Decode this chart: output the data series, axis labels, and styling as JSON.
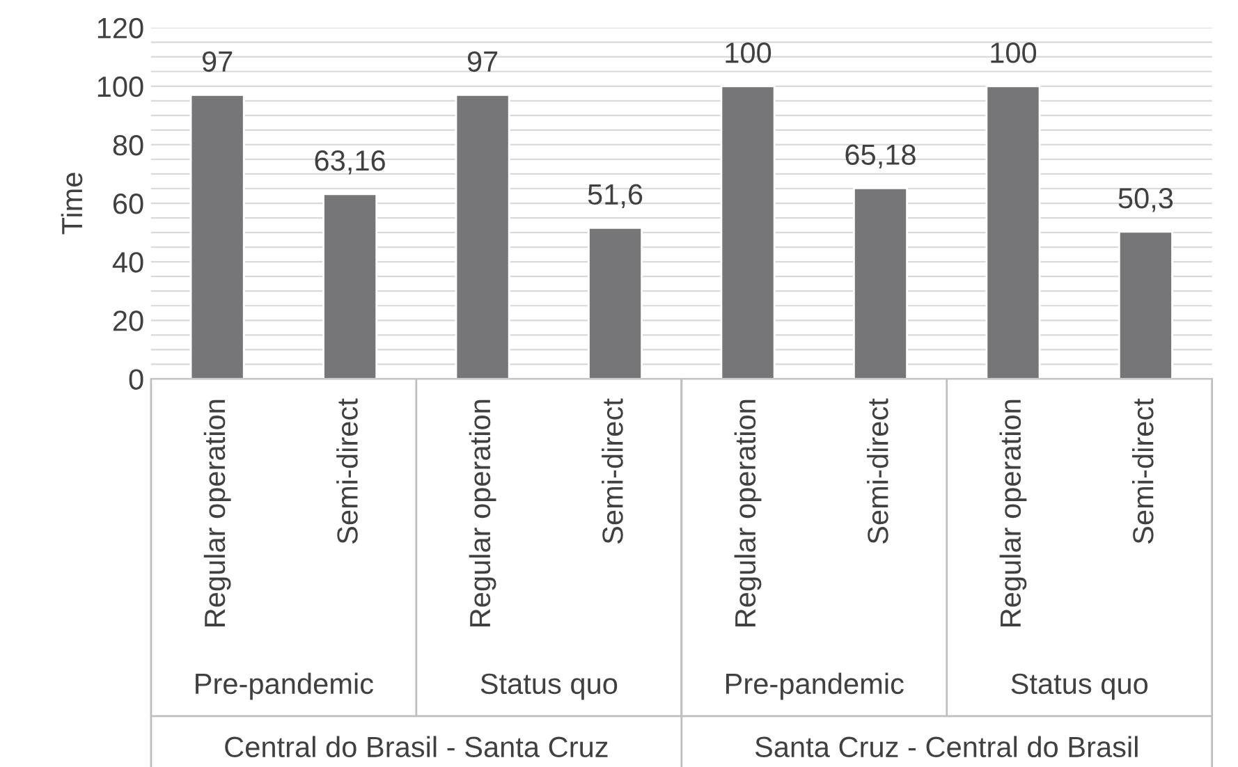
{
  "chart_data": {
    "type": "bar",
    "ylabel": "Time",
    "categories": [
      "Regular operation",
      "Semi-direct",
      "Regular operation",
      "Semi-direct",
      "Regular operation",
      "Semi-direct",
      "Regular operation",
      "Semi-direct"
    ],
    "values": [
      97,
      63.16,
      97,
      51.6,
      100,
      65.18,
      100,
      50.3
    ],
    "value_labels": [
      "97",
      "63,16",
      "97",
      "51,6",
      "100",
      "65,18",
      "100",
      "50,3"
    ],
    "color": "#767679",
    "ylim": [
      0,
      120
    ],
    "yticks": [
      0,
      {
        "value": 5,
        "label": null
      },
      {
        "value": 10,
        "label": null
      },
      {
        "value": 15,
        "label": null
      },
      20,
      {
        "value": 25,
        "label": null
      },
      {
        "value": 30,
        "label": null
      },
      {
        "value": 35,
        "label": null
      },
      40,
      {
        "value": 45,
        "label": null
      },
      {
        "value": 50,
        "label": null
      },
      {
        "value": 55,
        "label": null
      },
      60,
      {
        "value": 65,
        "label": null
      },
      {
        "value": 70,
        "label": null
      },
      {
        "value": 75,
        "label": null
      },
      80,
      {
        "value": 85,
        "label": null
      },
      {
        "value": 90,
        "label": null
      },
      {
        "value": 95,
        "label": null
      },
      100,
      {
        "value": 105,
        "label": null
      },
      {
        "value": 110,
        "label": null
      },
      {
        "value": 115,
        "label": null
      },
      120
    ],
    "grid": "y",
    "annotations": [
      "Pre-pandemic",
      "Status quo",
      "Pre-pandemic",
      "Status quo",
      "Central do Brasil - Santa Cruz",
      "Santa Cruz - Central do Brasil"
    ]
  }
}
